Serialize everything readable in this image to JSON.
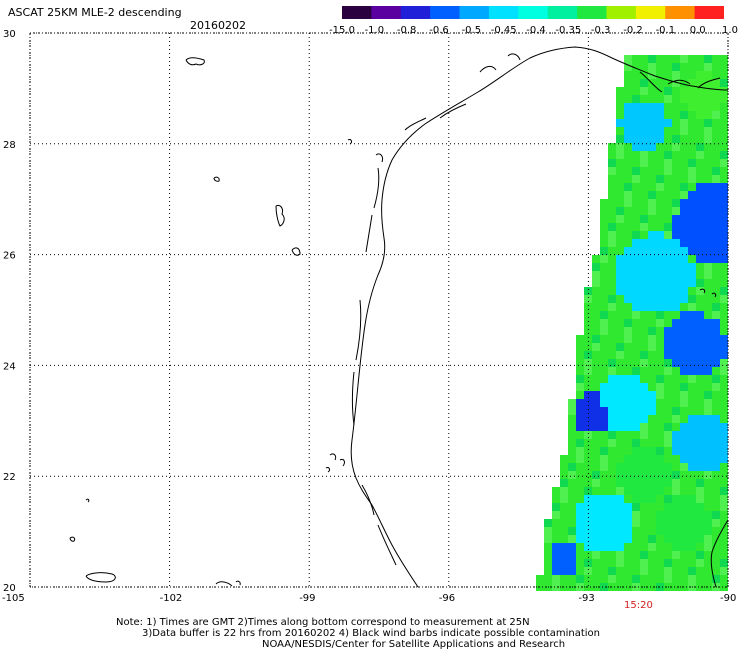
{
  "header": {
    "title": "ASCAT 25KM MLE-2 descending",
    "date": "20160202"
  },
  "colorbar": {
    "labels": [
      "-15.0",
      "-1.0",
      "-0.8",
      "-0.6",
      "-0.5",
      "-0.45",
      "-0.4",
      "-0.35",
      "-0.3",
      "-0.2",
      "-0.1",
      "0.0",
      "1.0"
    ],
    "colors": [
      "#2a0040",
      "#5a00a0",
      "#2020d8",
      "#0060ff",
      "#00a8ff",
      "#00e0ff",
      "#00ffe0",
      "#00f0a0",
      "#20e840",
      "#a0f000",
      "#f0f000",
      "#ff9000",
      "#ff2020"
    ]
  },
  "map": {
    "lat_ticks": [
      "30",
      "28",
      "26",
      "24",
      "22",
      "20"
    ],
    "lon_ticks": [
      "-105",
      "-102",
      "-99",
      "-96",
      "-93",
      "-90"
    ],
    "lat_range": [
      20,
      30
    ],
    "lon_range": [
      -105,
      -90
    ]
  },
  "notes": {
    "line1": "Note: 1) Times are GMT 2)Times along bottom correspond to measurement at 25N",
    "line2": "3)Data buffer is 22 hrs from 20160202 4) Black wind barbs indicate possible contamination",
    "line3": "NOAA/NESDIS/Center for Satellite Applications and Research"
  },
  "time_label": "15:20"
}
